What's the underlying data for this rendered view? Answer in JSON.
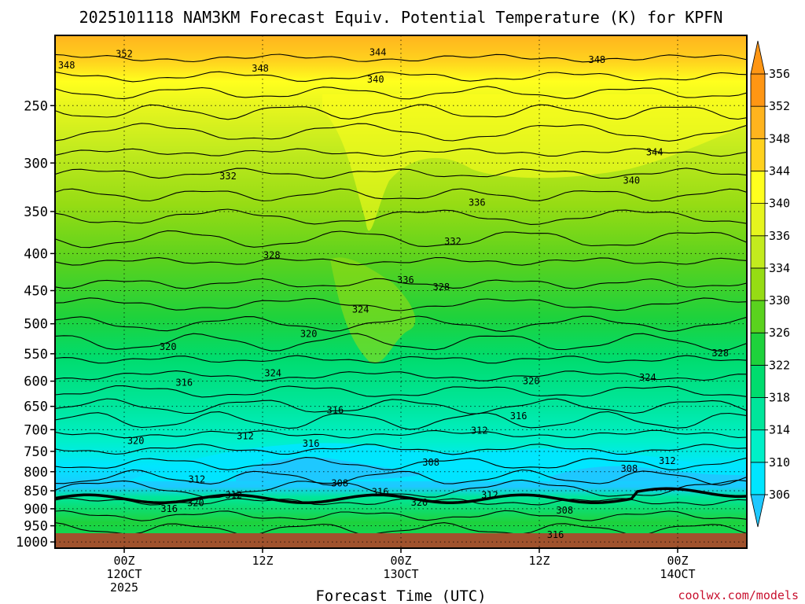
{
  "chart_data": {
    "type": "heatmap",
    "subtype": "filled-contour time-height cross section",
    "title": "2025101118 NAM3KM Forecast Equiv. Potential Temperature (K) for KPFN",
    "xlabel": "Forecast Time (UTC)",
    "ylabel": "",
    "units": "K",
    "x_range_hours": [
      -6,
      54
    ],
    "x_ticks": [
      {
        "hour": 0,
        "lines": [
          "00Z",
          "12OCT",
          "2025"
        ]
      },
      {
        "hour": 12,
        "lines": [
          "12Z"
        ]
      },
      {
        "hour": 24,
        "lines": [
          "00Z",
          "13OCT"
        ]
      },
      {
        "hour": 36,
        "lines": [
          "12Z"
        ]
      },
      {
        "hour": 48,
        "lines": [
          "00Z",
          "14OCT"
        ]
      }
    ],
    "y_axis": "pressure (hPa), log scale, inverted",
    "y_range": [
      1020,
      200
    ],
    "y_ticks": [
      250,
      300,
      350,
      400,
      450,
      500,
      550,
      600,
      650,
      700,
      750,
      800,
      850,
      900,
      950,
      1000
    ],
    "colorbar": {
      "levels": [
        306,
        310,
        314,
        318,
        322,
        326,
        330,
        334,
        336,
        340,
        344,
        348,
        352,
        356
      ],
      "colors": [
        "#1ec8ff",
        "#00e6ff",
        "#00f0c8",
        "#00e69b",
        "#00dc6e",
        "#1ed23c",
        "#5ad21e",
        "#96dc14",
        "#c3eb1e",
        "#e6f51e",
        "#ffff1e",
        "#ffd21e",
        "#ffb41e",
        "#ff9614"
      ]
    },
    "contour_labels": [
      {
        "hour": -5,
        "p": 220,
        "value": 348
      },
      {
        "hour": 0,
        "p": 212,
        "value": 352
      },
      {
        "hour": 11.8,
        "p": 222,
        "value": 348
      },
      {
        "hour": 22,
        "p": 211,
        "value": 344
      },
      {
        "hour": 41,
        "p": 216,
        "value": 348
      },
      {
        "hour": 21.8,
        "p": 230,
        "value": 340
      },
      {
        "hour": 46,
        "p": 290,
        "value": 344
      },
      {
        "hour": 44,
        "p": 317,
        "value": 340
      },
      {
        "hour": 9,
        "p": 313,
        "value": 332
      },
      {
        "hour": 30.6,
        "p": 340,
        "value": 336
      },
      {
        "hour": 12.8,
        "p": 402,
        "value": 328
      },
      {
        "hour": 28.5,
        "p": 385,
        "value": 332
      },
      {
        "hour": 24.4,
        "p": 435,
        "value": 336
      },
      {
        "hour": 27.5,
        "p": 445,
        "value": 328
      },
      {
        "hour": 20.5,
        "p": 478,
        "value": 324
      },
      {
        "hour": 16,
        "p": 516,
        "value": 320
      },
      {
        "hour": 3.8,
        "p": 538,
        "value": 320
      },
      {
        "hour": 51.7,
        "p": 549,
        "value": 328
      },
      {
        "hour": 12.9,
        "p": 585,
        "value": 324
      },
      {
        "hour": 45.4,
        "p": 593,
        "value": 324
      },
      {
        "hour": 35.3,
        "p": 600,
        "value": 320
      },
      {
        "hour": 5.2,
        "p": 603,
        "value": 316
      },
      {
        "hour": 18.3,
        "p": 658,
        "value": 316
      },
      {
        "hour": 34.2,
        "p": 670,
        "value": 316
      },
      {
        "hour": 1,
        "p": 725,
        "value": 320
      },
      {
        "hour": 10.5,
        "p": 714,
        "value": 312
      },
      {
        "hour": 30.8,
        "p": 702,
        "value": 312
      },
      {
        "hour": 16.2,
        "p": 732,
        "value": 316
      },
      {
        "hour": 26.6,
        "p": 777,
        "value": 308
      },
      {
        "hour": 43.8,
        "p": 792,
        "value": 308
      },
      {
        "hour": 47.1,
        "p": 773,
        "value": 312
      },
      {
        "hour": 6.3,
        "p": 820,
        "value": 312
      },
      {
        "hour": 18.7,
        "p": 830,
        "value": 308
      },
      {
        "hour": 9.5,
        "p": 862,
        "value": 312
      },
      {
        "hour": 22.2,
        "p": 853,
        "value": 316
      },
      {
        "hour": 31.7,
        "p": 862,
        "value": 312
      },
      {
        "hour": 25.6,
        "p": 882,
        "value": 320
      },
      {
        "hour": 6.2,
        "p": 883,
        "value": 320
      },
      {
        "hour": 3.9,
        "p": 900,
        "value": 316
      },
      {
        "hour": 38.2,
        "p": 905,
        "value": 308
      },
      {
        "hour": 37.4,
        "p": 977,
        "value": 316
      }
    ]
  },
  "credit": "coolwx.com/models"
}
